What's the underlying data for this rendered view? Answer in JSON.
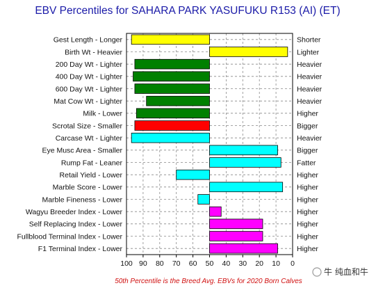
{
  "chart_data": {
    "type": "bar",
    "orientation": "horizontal",
    "title": "EBV Percentiles for SAHARA PARK YASUFUKU R153 (AI) (ET)",
    "footnote": "50th Percentile is the Breed Avg. EBVs for 2020 Born Calves",
    "baseline": 50,
    "xlim": [
      100,
      0
    ],
    "x_ticks": [
      "100",
      "90",
      "80",
      "70",
      "60",
      "50",
      "40",
      "30",
      "20",
      "10",
      "0"
    ],
    "grid": true,
    "rows": [
      {
        "left_label": "Gest Length - Longer",
        "right_label": "Shorter",
        "value": 97,
        "color": "#ffff00"
      },
      {
        "left_label": "Birth Wt - Heavier",
        "right_label": "Lighter",
        "value": 3,
        "color": "#ffff00"
      },
      {
        "left_label": "200 Day Wt - Lighter",
        "right_label": "Heavier",
        "value": 95,
        "color": "#008000"
      },
      {
        "left_label": "400 Day Wt - Lighter",
        "right_label": "Heavier",
        "value": 96,
        "color": "#008000"
      },
      {
        "left_label": "600 Day Wt - Lighter",
        "right_label": "Heavier",
        "value": 95,
        "color": "#008000"
      },
      {
        "left_label": "Mat Cow Wt - Lighter",
        "right_label": "Heavier",
        "value": 88,
        "color": "#008000"
      },
      {
        "left_label": "Milk - Lower",
        "right_label": "Higher",
        "value": 94,
        "color": "#008000"
      },
      {
        "left_label": "Scrotal Size - Smaller",
        "right_label": "Bigger",
        "value": 95,
        "color": "#ff0000"
      },
      {
        "left_label": "Carcase Wt - Lighter",
        "right_label": "Heavier",
        "value": 97,
        "color": "#00ffff"
      },
      {
        "left_label": "Eye Musc Area - Smaller",
        "right_label": "Bigger",
        "value": 9,
        "color": "#00ffff"
      },
      {
        "left_label": "Rump Fat - Leaner",
        "right_label": "Fatter",
        "value": 7,
        "color": "#00ffff"
      },
      {
        "left_label": "Retail Yield - Lower",
        "right_label": "Higher",
        "value": 70,
        "color": "#00ffff"
      },
      {
        "left_label": "Marble Score - Lower",
        "right_label": "Higher",
        "value": 6,
        "color": "#00ffff"
      },
      {
        "left_label": "Marble Fineness - Lower",
        "right_label": "Higher",
        "value": 57,
        "color": "#00ffff"
      },
      {
        "left_label": "Wagyu Breeder Index - Lower",
        "right_label": "Higher",
        "value": 43,
        "color": "#ff00ff"
      },
      {
        "left_label": "Self Replacing Index - Lower",
        "right_label": "Higher",
        "value": 18,
        "color": "#ff00ff"
      },
      {
        "left_label": "Fullblood Terminal Index - Lower",
        "right_label": "Higher",
        "value": 18,
        "color": "#ff00ff"
      },
      {
        "left_label": "F1 Terminal Index - Lower",
        "right_label": "Higher",
        "value": 9,
        "color": "#ff00ff"
      }
    ]
  },
  "watermark": "牛 纯血和牛"
}
